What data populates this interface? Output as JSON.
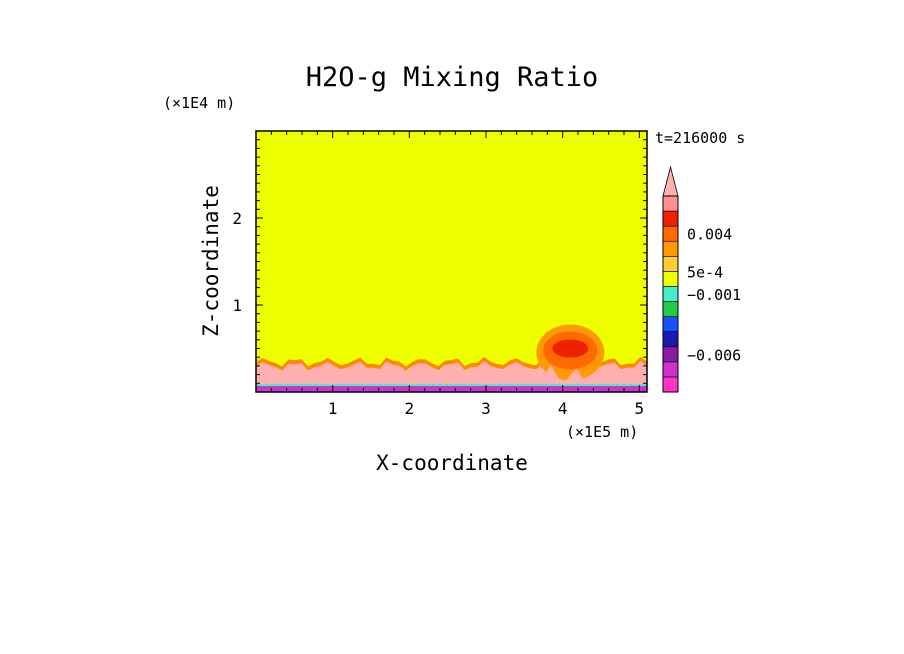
{
  "chart_data": {
    "type": "heatmap",
    "title": "H2O-g Mixing Ratio",
    "xlabel": "X-coordinate",
    "ylabel": "Z-coordinate",
    "x_scale_label": "(×1E5 m)",
    "y_scale_label": "(×1E4 m)",
    "time_label": "t=216000 s",
    "x_ticks": [
      "1",
      "2",
      "3",
      "4",
      "5"
    ],
    "y_ticks": [
      "1",
      "2"
    ],
    "xlim": [
      0,
      5.1
    ],
    "ylim": [
      0,
      3.0
    ],
    "background_color": "#eeff00",
    "colorbar": {
      "levels": [
        {
          "color": "#ff33cc"
        },
        {
          "color": "#cc33cc"
        },
        {
          "color": "#8a1aa8"
        },
        {
          "color": "#1a1ab0"
        },
        {
          "color": "#1a50ff"
        },
        {
          "color": "#22cc44"
        },
        {
          "color": "#44eecc"
        },
        {
          "color": "#eeff00"
        },
        {
          "color": "#ffcc33"
        },
        {
          "color": "#ff9900"
        },
        {
          "color": "#ff6a00"
        },
        {
          "color": "#ee2200"
        },
        {
          "color": "#ff9090"
        }
      ],
      "extend_arrow_color": "#ffb0b0",
      "labels": [
        {
          "text": "0.004",
          "level_boundary": 10.5
        },
        {
          "text": "5e-4",
          "level_boundary": 8.0
        },
        {
          "text": "−0.001",
          "level_boundary": 6.5
        },
        {
          "text": "−0.006",
          "level_boundary": 2.5
        }
      ]
    },
    "regions": [
      {
        "name": "surface-layer",
        "color": "#cc33cc",
        "x_from": 0,
        "x_to": 5.1,
        "z_from": 0,
        "z_to": 0.08
      },
      {
        "name": "boundary-layer",
        "color": "#ffb0b0",
        "x_from": 0,
        "x_to": 5.1,
        "z_from": 0.08,
        "z_to": 0.3
      },
      {
        "name": "plume",
        "color": "#ee2200",
        "center_x": 4.1,
        "center_z": 0.5
      }
    ]
  }
}
